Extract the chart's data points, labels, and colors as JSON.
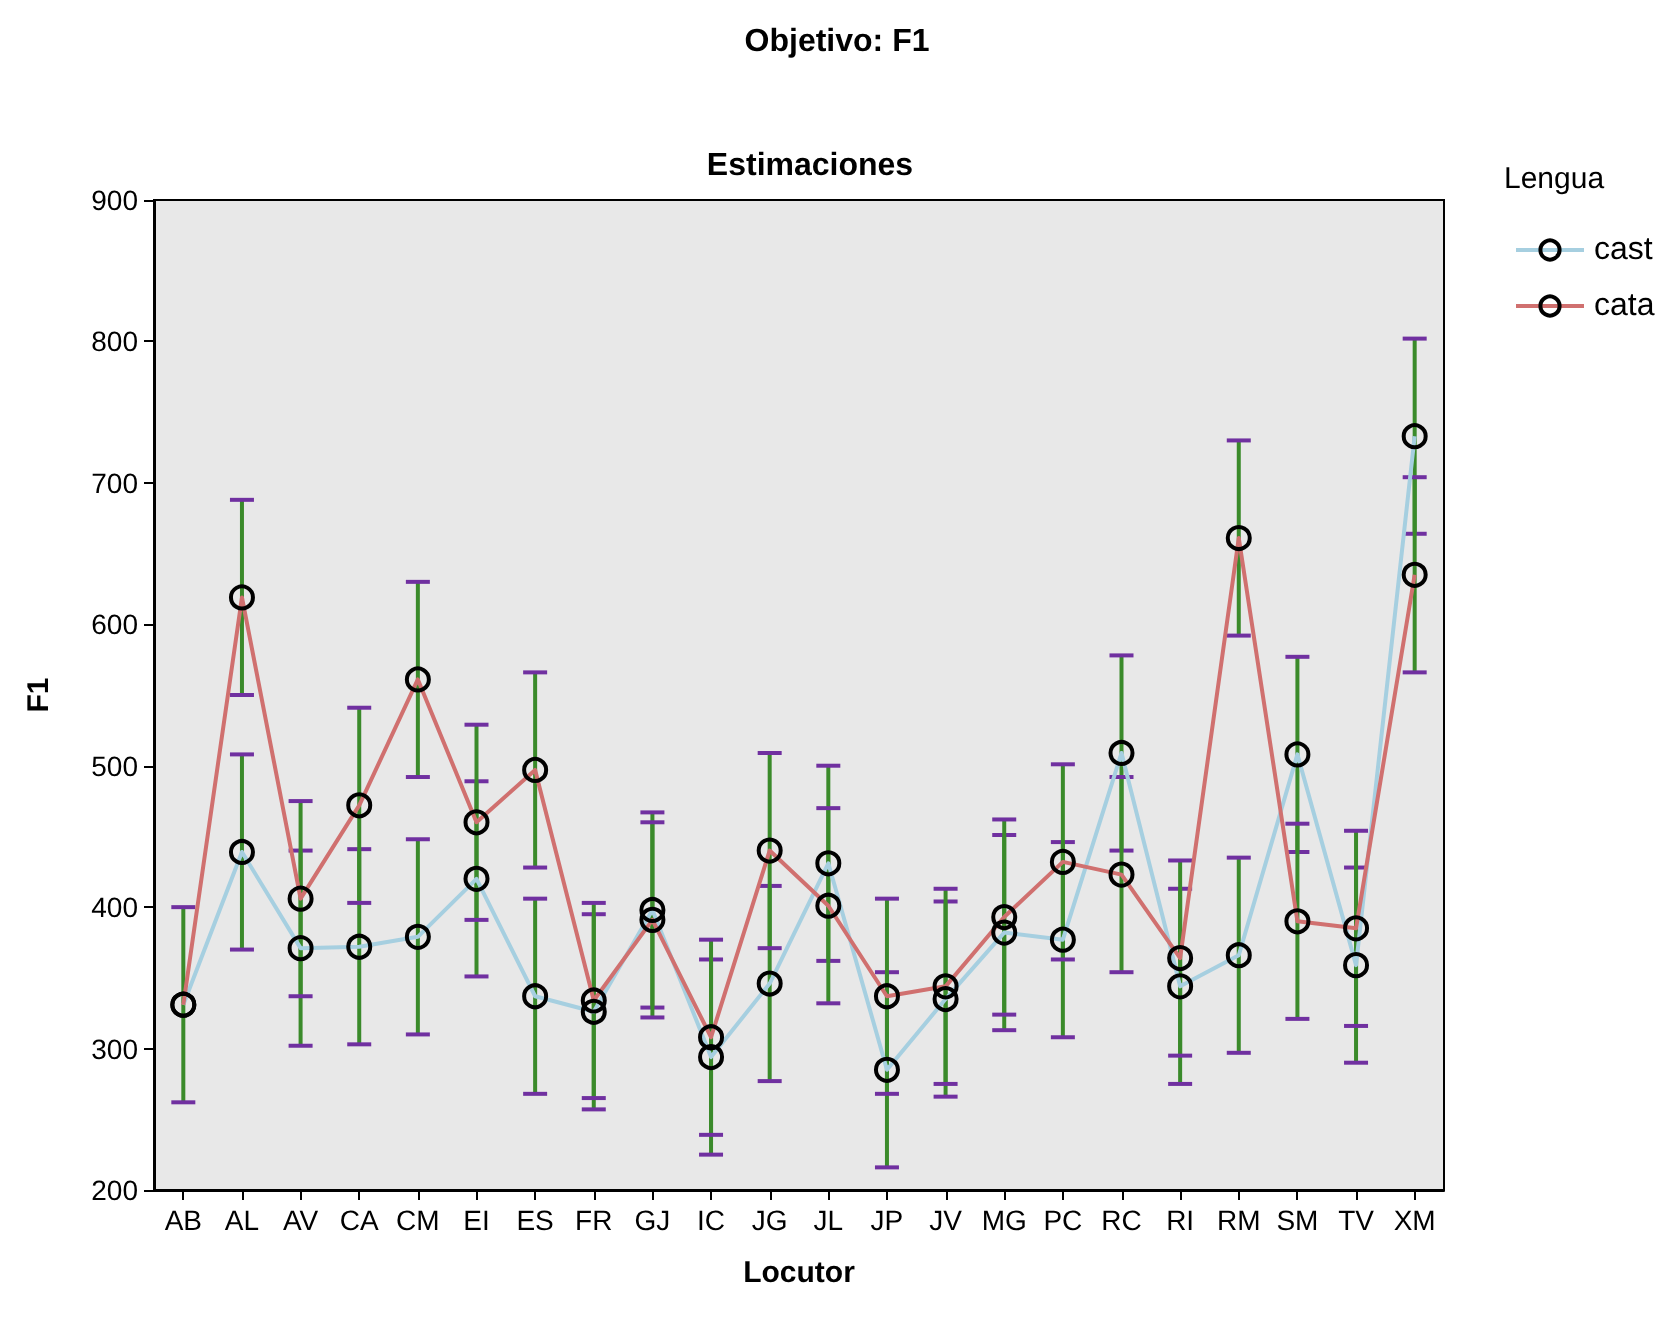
{
  "chart_data": {
    "type": "line",
    "title": "Objetivo: F1",
    "subtitle": "Estimaciones",
    "xlabel": "Locutor",
    "ylabel": "F1",
    "legend_title": "Lengua",
    "categories": [
      "AB",
      "AL",
      "AV",
      "CA",
      "CM",
      "EI",
      "ES",
      "FR",
      "GJ",
      "IC",
      "JG",
      "JL",
      "JP",
      "JV",
      "MG",
      "PC",
      "RC",
      "RI",
      "RM",
      "SM",
      "TV",
      "XM"
    ],
    "series": [
      {
        "name": "cast",
        "color": "#a6cfe0",
        "values": [
          331,
          439,
          371,
          372,
          379,
          420,
          337,
          326,
          398,
          294,
          346,
          431,
          285,
          335,
          382,
          377,
          509,
          344,
          366,
          508,
          359,
          733
        ],
        "errors": [
          69,
          69,
          69,
          69,
          69,
          69,
          69,
          69,
          69,
          69,
          69,
          69,
          69,
          69,
          69,
          69,
          69,
          69,
          69,
          69,
          69,
          69
        ]
      },
      {
        "name": "cata",
        "color": "#d0706f",
        "values": [
          331,
          619,
          406,
          472,
          561,
          460,
          497,
          334,
          391,
          308,
          440,
          401,
          337,
          344,
          393,
          432,
          423,
          364,
          661,
          390,
          385,
          635
        ],
        "errors": [
          69,
          69,
          69,
          69,
          69,
          69,
          69,
          69,
          69,
          69,
          69,
          69,
          69,
          69,
          69,
          69,
          69,
          69,
          69,
          69,
          69,
          69
        ]
      }
    ],
    "ylim": [
      200,
      900
    ],
    "yticks": [
      200,
      300,
      400,
      500,
      600,
      700,
      800,
      900
    ],
    "grid": false,
    "legend": "right",
    "marker": "circle",
    "line_style": "solid"
  }
}
